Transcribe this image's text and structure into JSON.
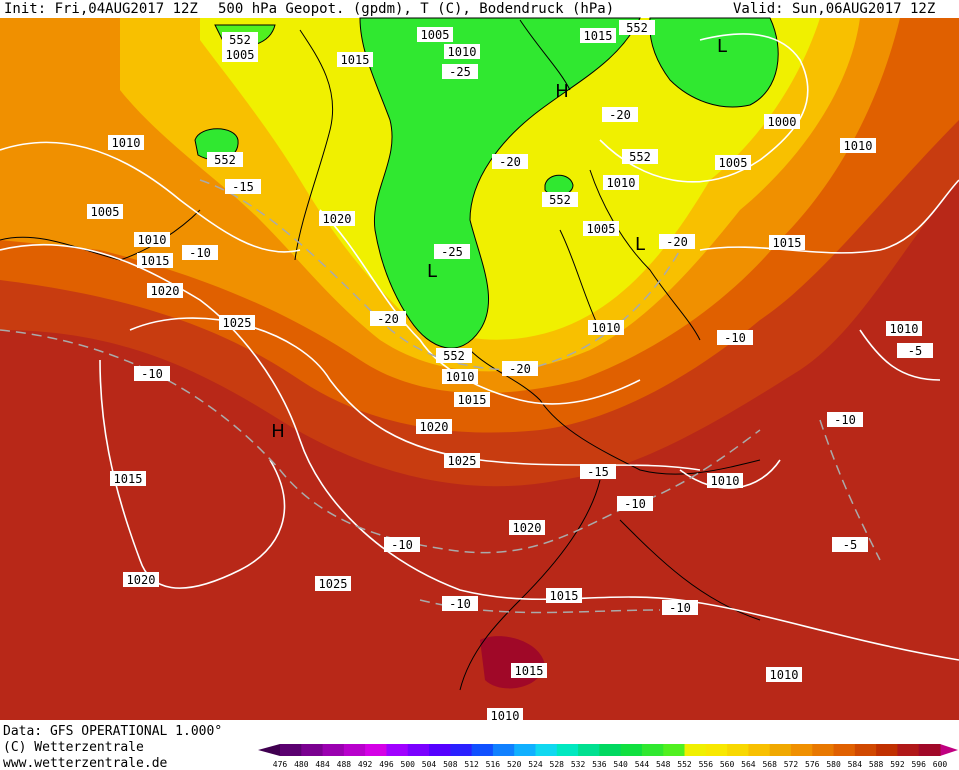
{
  "header": {
    "init": "Init: Fri,04AUG2017 12Z",
    "title": "500 hPa Geopot. (gpdm), T (C), Bodendruck (hPa)",
    "valid": "Valid: Sun,06AUG2017 12Z"
  },
  "footer": {
    "source": "Data: GFS OPERATIONAL 1.000°",
    "copyright": "(C) Wetterzentrale",
    "url": "www.wetterzentrale.de"
  },
  "map_labels": [
    "1005",
    "1005",
    "1010",
    "1015",
    "1015",
    "552",
    "552",
    "1010",
    "552",
    "1005",
    "1010",
    "1015",
    "1020",
    "1025",
    "1020",
    "-25",
    "H",
    "-20",
    "1000",
    "1010",
    "-20",
    "552",
    "1010",
    "1005",
    "552",
    "1005",
    "L",
    "-20",
    "1015",
    "-15",
    "-10",
    "-25",
    "L",
    "-20",
    "1010",
    "-10",
    "1010",
    "-5",
    "552",
    "1010",
    "-20",
    "1015",
    "1020",
    "H",
    "-10",
    "1025",
    "1015",
    "-15",
    "1010",
    "-10",
    "-10",
    "1020",
    "-10",
    "-5",
    "1020",
    "1025",
    "1015",
    "-10",
    "-10",
    "1015",
    "1010",
    "1010",
    "L"
  ],
  "colorbar": {
    "ticks": [
      476,
      480,
      484,
      488,
      492,
      496,
      500,
      504,
      508,
      512,
      516,
      520,
      524,
      528,
      532,
      536,
      540,
      544,
      548,
      552,
      556,
      560,
      564,
      568,
      572,
      576,
      580,
      584,
      588,
      592,
      596,
      600
    ],
    "colors": [
      "#5a0070",
      "#7a0090",
      "#9a00b0",
      "#b800cc",
      "#d400e6",
      "#a000ff",
      "#7a00ff",
      "#5500ff",
      "#2a20ff",
      "#1050ff",
      "#1080ff",
      "#10b0ff",
      "#10d8f0",
      "#00e8c0",
      "#00e090",
      "#00d860",
      "#10e040",
      "#30e830",
      "#50f020",
      "#f0f000",
      "#f8e800",
      "#f8d800",
      "#f8c000",
      "#f0a800",
      "#f09000",
      "#e87800",
      "#e06000",
      "#d04800",
      "#c03000",
      "#b01818",
      "#a00828"
    ]
  }
}
